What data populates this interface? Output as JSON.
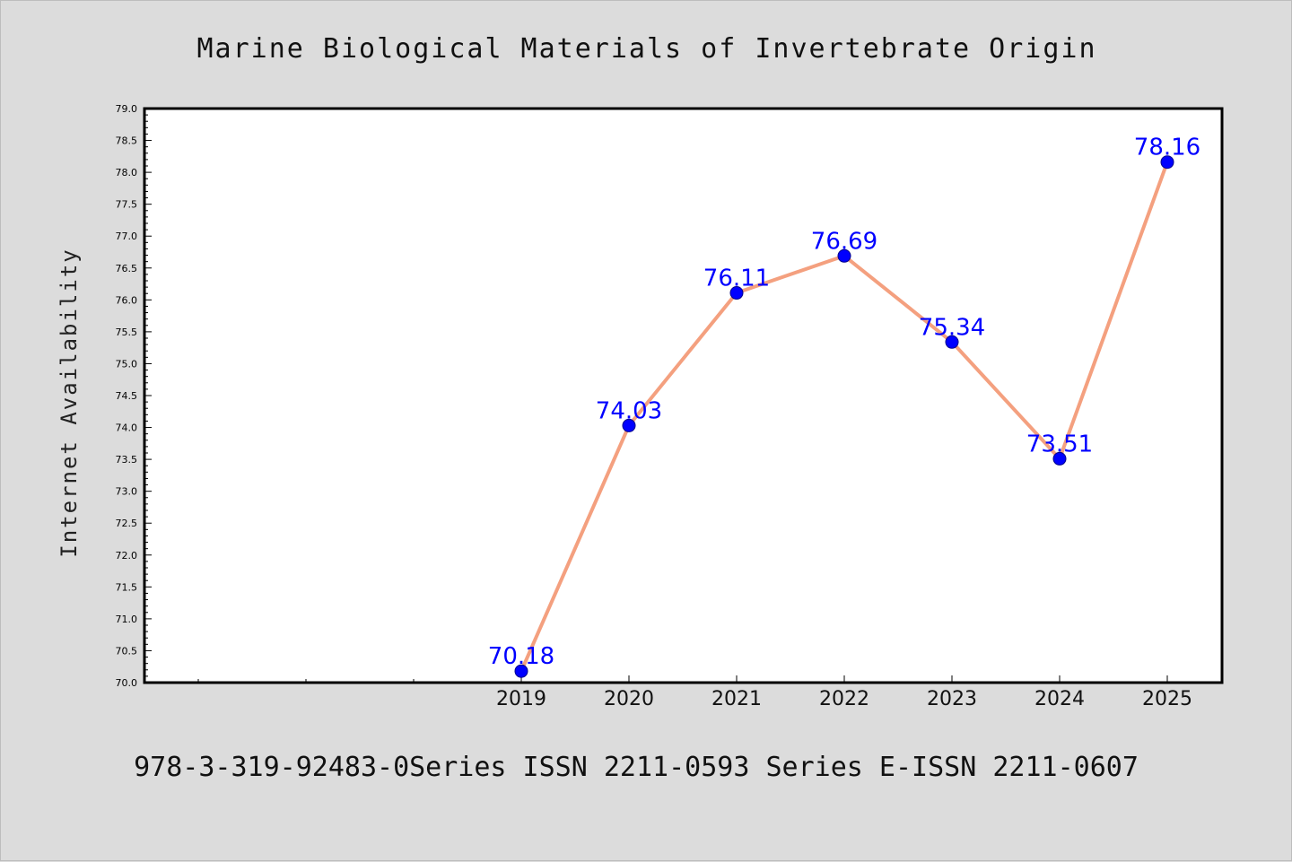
{
  "chart_data": {
    "type": "line",
    "title": "Marine Biological Materials of Invertebrate Origin",
    "xlabel": "",
    "ylabel": "Internet Availability",
    "categories": [
      "2019",
      "2020",
      "2021",
      "2022",
      "2023",
      "2024",
      "2025"
    ],
    "series": [
      {
        "values": [
          70.18,
          74.03,
          76.11,
          76.69,
          75.34,
          73.51,
          78.16
        ]
      }
    ],
    "data_labels": [
      "70.18",
      "74.03",
      "76.11",
      "76.69",
      "75.34",
      "73.51",
      "78.16"
    ],
    "ylim": [
      70.0,
      79.0
    ],
    "yticks": [
      "70.0",
      "70.5",
      "71.0",
      "71.5",
      "72.0",
      "72.5",
      "73.0",
      "73.5",
      "74.0",
      "74.5",
      "75.0",
      "75.5",
      "76.0",
      "76.5",
      "77.0",
      "77.5",
      "78.0",
      "78.5",
      "79.0"
    ],
    "grid": false,
    "line_color": "#f4a07f",
    "marker_color": "#0000ff",
    "label_color": "#0000ff"
  },
  "footer": "978-3-319-92483-0Series ISSN 2211-0593 Series E-ISSN 2211-0607"
}
